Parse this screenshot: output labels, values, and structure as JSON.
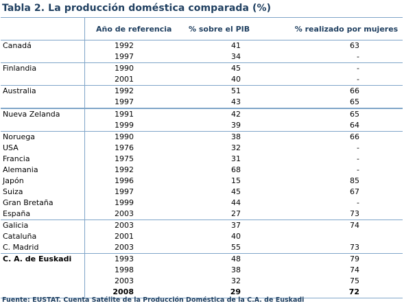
{
  "title": "Tabla 2. La producción doméstica comparada (%)",
  "headers": {
    "country": "",
    "year": "Año de referencia",
    "pib": "% sobre el PIB",
    "women": "% realizado por mujeres"
  },
  "rows": [
    {
      "country": "Canadá",
      "year": "1992",
      "pib": "41",
      "women": "63",
      "group": "start"
    },
    {
      "country": "",
      "year": "1997",
      "pib": "34",
      "women": "-"
    },
    {
      "country": "Finlandia",
      "year": "1990",
      "pib": "45",
      "women": "-",
      "group": "start"
    },
    {
      "country": "",
      "year": "2001",
      "pib": "40",
      "women": "-"
    },
    {
      "country": "Australia",
      "year": "1992",
      "pib": "51",
      "women": "66",
      "group": "start"
    },
    {
      "country": "",
      "year": "1997",
      "pib": "43",
      "women": "65"
    },
    {
      "country": "Nueva Zelanda",
      "year": "1991",
      "pib": "42",
      "women": "65",
      "group": "thick"
    },
    {
      "country": "",
      "year": "1999",
      "pib": "39",
      "women": "64"
    },
    {
      "country": "Noruega",
      "year": "1990",
      "pib": "38",
      "women": "66",
      "group": "start"
    },
    {
      "country": "USA",
      "year": "1976",
      "pib": "32",
      "women": "-"
    },
    {
      "country": "Francia",
      "year": "1975",
      "pib": "31",
      "women": "-"
    },
    {
      "country": "Alemania",
      "year": "1992",
      "pib": "68",
      "women": "-"
    },
    {
      "country": "Japón",
      "year": "1996",
      "pib": "15",
      "women": "85"
    },
    {
      "country": "Suiza",
      "year": "1997",
      "pib": "45",
      "women": "67"
    },
    {
      "country": "Gran Bretaña",
      "year": "1999",
      "pib": "44",
      "women": "-"
    },
    {
      "country": "España",
      "year": "2003",
      "pib": "27",
      "women": "73"
    },
    {
      "country": "Galicia",
      "year": "2003",
      "pib": "37",
      "women": "74",
      "group": "start"
    },
    {
      "country": "Cataluña",
      "year": "2001",
      "pib": "40",
      "women": ""
    },
    {
      "country": "C. Madrid",
      "year": "2003",
      "pib": "55",
      "women": "73"
    },
    {
      "country": "C. A. de Euskadi",
      "year": "1993",
      "pib": "48",
      "women": "79",
      "group": "start",
      "bold_country": true
    },
    {
      "country": "",
      "year": "1998",
      "pib": "38",
      "women": "74"
    },
    {
      "country": "",
      "year": "2003",
      "pib": "32",
      "women": "75"
    },
    {
      "country": "",
      "year": "2008",
      "pib": "29",
      "women": "72",
      "last": true
    }
  ],
  "source": "Fuente: EUSTAT. Cuenta Satélite de la Producción Doméstica de la C.A. de Euskadi"
}
